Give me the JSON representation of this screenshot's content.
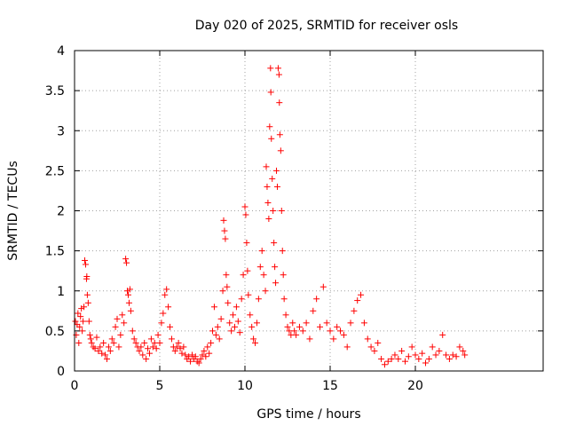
{
  "chart_data": {
    "type": "scatter",
    "title": "Day 020 of 2025, SRMTID for receiver osls",
    "xlabel": "GPS time / hours",
    "ylabel": "SRMTID / TECUs",
    "xlim": [
      0,
      27.5
    ],
    "ylim": [
      0,
      4
    ],
    "xticks": [
      0,
      5,
      10,
      15,
      20
    ],
    "yticks": [
      0,
      0.5,
      1,
      1.5,
      2,
      2.5,
      3,
      3.5,
      4
    ],
    "x_tick_labels": [
      "0",
      "5",
      "10",
      "15",
      "20"
    ],
    "y_tick_labels": [
      "0",
      "0.5",
      "1",
      "1.5",
      "2",
      "2.5",
      "3",
      "3.5",
      "4"
    ],
    "grid": true,
    "marker": "+",
    "color": "#ff0000",
    "series": [
      {
        "name": "SRMTID",
        "points": [
          [
            0.05,
            0.62
          ],
          [
            0.1,
            0.45
          ],
          [
            0.15,
            0.58
          ],
          [
            0.2,
            0.72
          ],
          [
            0.25,
            0.35
          ],
          [
            0.3,
            0.55
          ],
          [
            0.35,
            0.68
          ],
          [
            0.4,
            0.78
          ],
          [
            0.45,
            0.5
          ],
          [
            0.5,
            0.62
          ],
          [
            0.55,
            0.8
          ],
          [
            0.6,
            1.38
          ],
          [
            0.65,
            1.33
          ],
          [
            0.7,
            1.15
          ],
          [
            0.72,
            1.18
          ],
          [
            0.75,
            0.95
          ],
          [
            0.8,
            0.85
          ],
          [
            0.85,
            0.62
          ],
          [
            0.9,
            0.45
          ],
          [
            0.95,
            0.4
          ],
          [
            1.0,
            0.35
          ],
          [
            1.1,
            0.3
          ],
          [
            1.2,
            0.28
          ],
          [
            1.3,
            0.42
          ],
          [
            1.4,
            0.25
          ],
          [
            1.5,
            0.3
          ],
          [
            1.6,
            0.22
          ],
          [
            1.7,
            0.35
          ],
          [
            1.8,
            0.2
          ],
          [
            1.9,
            0.15
          ],
          [
            2.0,
            0.3
          ],
          [
            2.1,
            0.25
          ],
          [
            2.2,
            0.4
          ],
          [
            2.3,
            0.35
          ],
          [
            2.4,
            0.55
          ],
          [
            2.5,
            0.65
          ],
          [
            2.6,
            0.3
          ],
          [
            2.7,
            0.45
          ],
          [
            2.8,
            0.7
          ],
          [
            2.9,
            0.6
          ],
          [
            3.0,
            1.4
          ],
          [
            3.05,
            1.35
          ],
          [
            3.1,
            1.0
          ],
          [
            3.15,
            0.95
          ],
          [
            3.2,
            0.85
          ],
          [
            3.25,
            1.02
          ],
          [
            3.3,
            0.75
          ],
          [
            3.4,
            0.5
          ],
          [
            3.5,
            0.4
          ],
          [
            3.6,
            0.35
          ],
          [
            3.7,
            0.3
          ],
          [
            3.8,
            0.25
          ],
          [
            3.9,
            0.3
          ],
          [
            4.0,
            0.2
          ],
          [
            4.1,
            0.35
          ],
          [
            4.2,
            0.15
          ],
          [
            4.3,
            0.28
          ],
          [
            4.4,
            0.22
          ],
          [
            4.5,
            0.4
          ],
          [
            4.6,
            0.3
          ],
          [
            4.7,
            0.35
          ],
          [
            4.8,
            0.28
          ],
          [
            4.9,
            0.45
          ],
          [
            5.0,
            0.35
          ],
          [
            5.1,
            0.6
          ],
          [
            5.2,
            0.72
          ],
          [
            5.3,
            0.95
          ],
          [
            5.4,
            1.02
          ],
          [
            5.5,
            0.8
          ],
          [
            5.6,
            0.55
          ],
          [
            5.7,
            0.4
          ],
          [
            5.8,
            0.3
          ],
          [
            5.9,
            0.25
          ],
          [
            6.0,
            0.3
          ],
          [
            6.1,
            0.35
          ],
          [
            6.2,
            0.28
          ],
          [
            6.3,
            0.22
          ],
          [
            6.4,
            0.3
          ],
          [
            6.5,
            0.2
          ],
          [
            6.6,
            0.15
          ],
          [
            6.7,
            0.18
          ],
          [
            6.8,
            0.12
          ],
          [
            6.9,
            0.2
          ],
          [
            7.0,
            0.15
          ],
          [
            7.1,
            0.18
          ],
          [
            7.2,
            0.12
          ],
          [
            7.3,
            0.1
          ],
          [
            7.4,
            0.15
          ],
          [
            7.5,
            0.2
          ],
          [
            7.6,
            0.25
          ],
          [
            7.7,
            0.18
          ],
          [
            7.8,
            0.3
          ],
          [
            7.9,
            0.22
          ],
          [
            8.0,
            0.35
          ],
          [
            8.1,
            0.5
          ],
          [
            8.2,
            0.8
          ],
          [
            8.3,
            0.45
          ],
          [
            8.4,
            0.55
          ],
          [
            8.5,
            0.4
          ],
          [
            8.6,
            0.65
          ],
          [
            8.7,
            1.0
          ],
          [
            8.75,
            1.88
          ],
          [
            8.8,
            1.75
          ],
          [
            8.85,
            1.65
          ],
          [
            8.9,
            1.2
          ],
          [
            8.95,
            1.05
          ],
          [
            9.0,
            0.85
          ],
          [
            9.1,
            0.6
          ],
          [
            9.2,
            0.5
          ],
          [
            9.3,
            0.7
          ],
          [
            9.4,
            0.55
          ],
          [
            9.5,
            0.8
          ],
          [
            9.6,
            0.62
          ],
          [
            9.7,
            0.48
          ],
          [
            9.8,
            0.9
          ],
          [
            9.9,
            1.2
          ],
          [
            10.0,
            2.05
          ],
          [
            10.05,
            1.95
          ],
          [
            10.1,
            1.6
          ],
          [
            10.15,
            1.25
          ],
          [
            10.2,
            0.95
          ],
          [
            10.3,
            0.7
          ],
          [
            10.4,
            0.55
          ],
          [
            10.5,
            0.4
          ],
          [
            10.6,
            0.35
          ],
          [
            10.7,
            0.6
          ],
          [
            10.8,
            0.9
          ],
          [
            10.9,
            1.3
          ],
          [
            11.0,
            1.5
          ],
          [
            11.1,
            1.2
          ],
          [
            11.2,
            1.0
          ],
          [
            11.25,
            2.55
          ],
          [
            11.3,
            2.3
          ],
          [
            11.35,
            2.1
          ],
          [
            11.4,
            1.9
          ],
          [
            11.45,
            3.05
          ],
          [
            11.5,
            3.78
          ],
          [
            11.52,
            3.48
          ],
          [
            11.55,
            2.9
          ],
          [
            11.6,
            2.4
          ],
          [
            11.65,
            2.0
          ],
          [
            11.7,
            1.6
          ],
          [
            11.75,
            1.3
          ],
          [
            11.8,
            1.1
          ],
          [
            11.85,
            2.5
          ],
          [
            11.9,
            2.3
          ],
          [
            11.95,
            3.78
          ],
          [
            12.0,
            3.7
          ],
          [
            12.02,
            3.35
          ],
          [
            12.05,
            2.95
          ],
          [
            12.1,
            2.75
          ],
          [
            12.15,
            2.0
          ],
          [
            12.2,
            1.5
          ],
          [
            12.25,
            1.2
          ],
          [
            12.3,
            0.9
          ],
          [
            12.4,
            0.7
          ],
          [
            12.5,
            0.55
          ],
          [
            12.6,
            0.5
          ],
          [
            12.7,
            0.45
          ],
          [
            12.8,
            0.6
          ],
          [
            12.9,
            0.5
          ],
          [
            13.0,
            0.45
          ],
          [
            13.2,
            0.55
          ],
          [
            13.4,
            0.5
          ],
          [
            13.6,
            0.6
          ],
          [
            13.8,
            0.4
          ],
          [
            14.0,
            0.75
          ],
          [
            14.2,
            0.9
          ],
          [
            14.4,
            0.55
          ],
          [
            14.6,
            1.05
          ],
          [
            14.8,
            0.6
          ],
          [
            15.0,
            0.5
          ],
          [
            15.2,
            0.4
          ],
          [
            15.4,
            0.55
          ],
          [
            15.6,
            0.5
          ],
          [
            15.8,
            0.45
          ],
          [
            16.0,
            0.3
          ],
          [
            16.2,
            0.6
          ],
          [
            16.4,
            0.75
          ],
          [
            16.6,
            0.88
          ],
          [
            16.8,
            0.95
          ],
          [
            17.0,
            0.6
          ],
          [
            17.2,
            0.4
          ],
          [
            17.4,
            0.3
          ],
          [
            17.6,
            0.25
          ],
          [
            17.8,
            0.35
          ],
          [
            18.0,
            0.15
          ],
          [
            18.2,
            0.08
          ],
          [
            18.4,
            0.12
          ],
          [
            18.6,
            0.15
          ],
          [
            18.8,
            0.2
          ],
          [
            19.0,
            0.15
          ],
          [
            19.2,
            0.25
          ],
          [
            19.4,
            0.12
          ],
          [
            19.6,
            0.18
          ],
          [
            19.8,
            0.3
          ],
          [
            20.0,
            0.2
          ],
          [
            20.2,
            0.15
          ],
          [
            20.4,
            0.22
          ],
          [
            20.6,
            0.1
          ],
          [
            20.8,
            0.15
          ],
          [
            21.0,
            0.3
          ],
          [
            21.2,
            0.2
          ],
          [
            21.4,
            0.25
          ],
          [
            21.6,
            0.45
          ],
          [
            21.8,
            0.2
          ],
          [
            22.0,
            0.15
          ],
          [
            22.2,
            0.2
          ],
          [
            22.4,
            0.18
          ],
          [
            22.6,
            0.3
          ],
          [
            22.8,
            0.25
          ],
          [
            22.9,
            0.2
          ]
        ]
      }
    ]
  }
}
